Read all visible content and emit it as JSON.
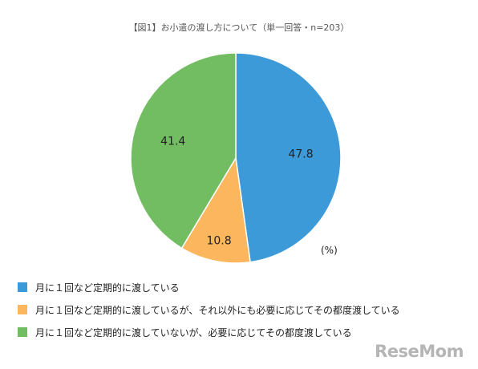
{
  "title": "【図1】お小遣の渡し方について（単一回答・n=203）",
  "unit_label": "(%)",
  "watermark": "ReseMom",
  "chart_data": {
    "type": "pie",
    "title": "【図1】お小遣の渡し方について（単一回答・n=203）",
    "unit": "(%)",
    "start": "12 o'clock, clockwise",
    "legend_position": "bottom-left",
    "slices": [
      {
        "label": "月に１回など定期的に渡している",
        "value": 47.8,
        "color": "#3d9ad9"
      },
      {
        "label": "月に１回など定期的に渡しているが、それ以外にも必要に応じてその都度渡している",
        "value": 10.8,
        "color": "#fbb65e"
      },
      {
        "label": "月に１回など定期的に渡していないが、必要に応じてその都度渡している",
        "value": 41.4,
        "color": "#72bd61"
      }
    ]
  }
}
